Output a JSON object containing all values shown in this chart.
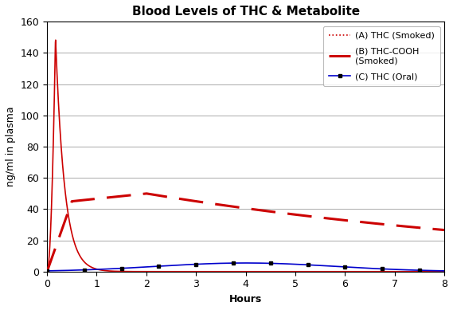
{
  "title": "Blood Levels of THC & Metabolite",
  "xlabel": "Hours",
  "ylabel": "ng/ml in plasma",
  "xlim": [
    0,
    8
  ],
  "ylim": [
    0,
    160
  ],
  "yticks": [
    0,
    20,
    40,
    60,
    80,
    100,
    120,
    140,
    160
  ],
  "xticks": [
    0,
    1,
    2,
    3,
    4,
    5,
    6,
    7,
    8
  ],
  "background_color": "#ffffff",
  "legend_labels": [
    "(A) THC (Smoked)",
    "(B) THC-COOH\n(Smoked)",
    "(C) THC (Oral)"
  ],
  "line_A_color": "#cc0000",
  "line_B_color": "#cc0000",
  "line_C_color": "#0000cc",
  "title_fontsize": 11,
  "axis_label_fontsize": 9,
  "tick_fontsize": 9,
  "legend_fontsize": 8
}
